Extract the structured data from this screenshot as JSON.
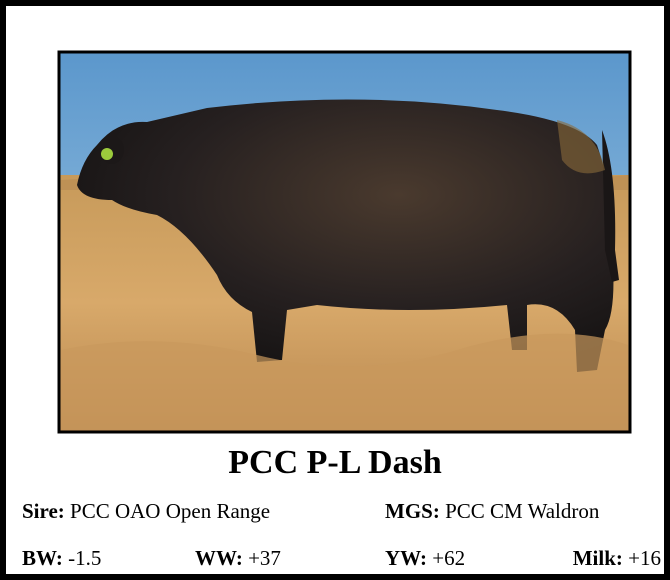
{
  "title": "PCC P-L Dash",
  "pedigree": [
    {
      "label": "Sire:",
      "value": "PCC OAO Open Range"
    },
    {
      "label": "MGS:",
      "value": "PCC CM Waldron"
    }
  ],
  "epds": [
    {
      "label": "BW:",
      "value": "-1.5"
    },
    {
      "label": "WW:",
      "value": "+37"
    },
    {
      "label": "YW:",
      "value": "+62"
    },
    {
      "label": "Milk:",
      "value": "+16"
    }
  ]
}
